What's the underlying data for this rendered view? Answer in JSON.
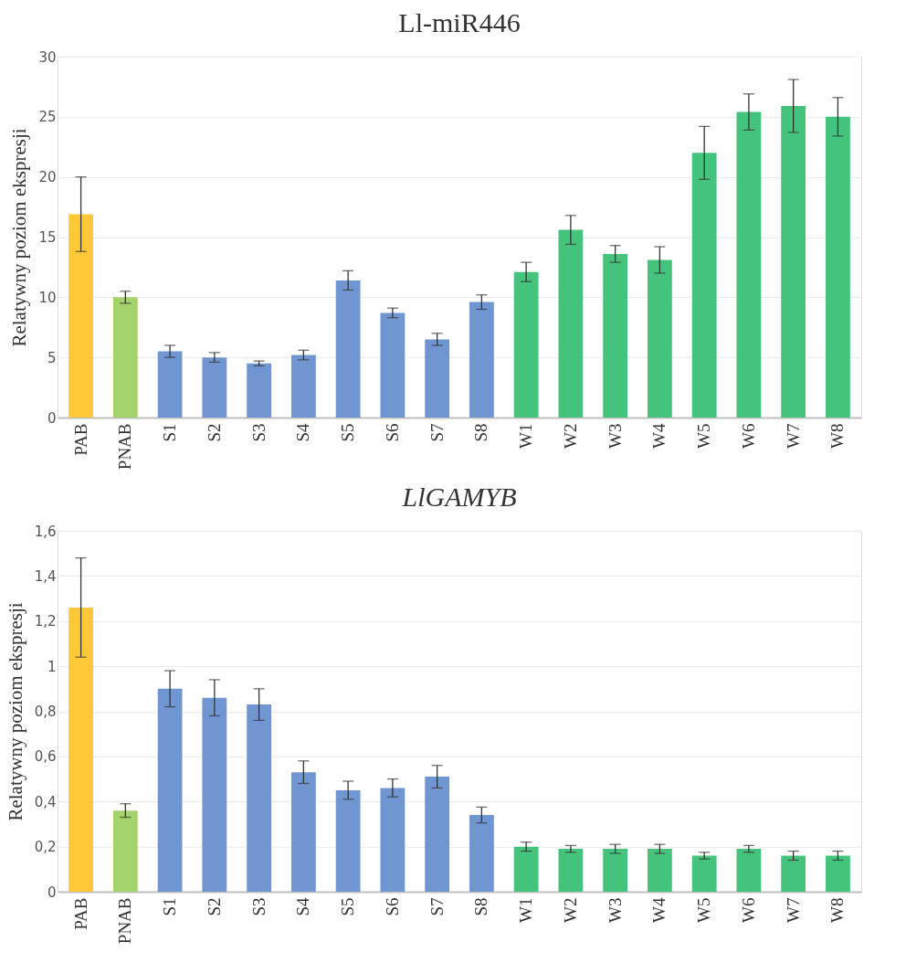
{
  "chart_data": [
    {
      "type": "bar",
      "title": "Ll-miR446",
      "ylabel": "Relatywny poziom ekspresji",
      "categories": [
        "PAB",
        "PNAB",
        "S1",
        "S2",
        "S3",
        "S4",
        "S5",
        "S6",
        "S7",
        "S8",
        "W1",
        "W2",
        "W3",
        "W4",
        "W5",
        "W6",
        "W7",
        "W8"
      ],
      "values": [
        16.9,
        10.0,
        5.5,
        5.0,
        4.5,
        5.2,
        11.4,
        8.7,
        6.5,
        9.6,
        12.1,
        15.6,
        13.6,
        13.1,
        22.0,
        25.4,
        25.9,
        25.0
      ],
      "errors": [
        3.1,
        0.5,
        0.5,
        0.4,
        0.2,
        0.4,
        0.8,
        0.4,
        0.5,
        0.6,
        0.8,
        1.2,
        0.7,
        1.1,
        2.2,
        1.5,
        2.2,
        1.6
      ],
      "colors": [
        "#ffc936",
        "#a4d36c",
        "#7096d1",
        "#7096d1",
        "#7096d1",
        "#7096d1",
        "#7096d1",
        "#7096d1",
        "#7096d1",
        "#7096d1",
        "#44c37c",
        "#44c37c",
        "#44c37c",
        "#44c37c",
        "#44c37c",
        "#44c37c",
        "#44c37c",
        "#44c37c"
      ],
      "ylim": [
        0,
        30
      ],
      "yticks": [
        0,
        5,
        10,
        15,
        20,
        25,
        30
      ],
      "grid": "y"
    },
    {
      "type": "bar",
      "title": "LlGAMYB",
      "ylabel": "Relatywny poziom ekspresji",
      "categories": [
        "PAB",
        "PNAB",
        "S1",
        "S2",
        "S3",
        "S4",
        "S5",
        "S6",
        "S7",
        "S8",
        "W1",
        "W2",
        "W3",
        "W4",
        "W5",
        "W6",
        "W7",
        "W8"
      ],
      "values": [
        1.26,
        0.36,
        0.9,
        0.86,
        0.83,
        0.53,
        0.45,
        0.46,
        0.51,
        0.34,
        0.2,
        0.19,
        0.19,
        0.19,
        0.16,
        0.19,
        0.16,
        0.16
      ],
      "errors": [
        0.22,
        0.03,
        0.08,
        0.08,
        0.07,
        0.05,
        0.04,
        0.04,
        0.05,
        0.035,
        0.02,
        0.015,
        0.02,
        0.02,
        0.015,
        0.015,
        0.02,
        0.02
      ],
      "colors": [
        "#ffc936",
        "#a4d36c",
        "#7096d1",
        "#7096d1",
        "#7096d1",
        "#7096d1",
        "#7096d1",
        "#7096d1",
        "#7096d1",
        "#7096d1",
        "#44c37c",
        "#44c37c",
        "#44c37c",
        "#44c37c",
        "#44c37c",
        "#44c37c",
        "#44c37c",
        "#44c37c"
      ],
      "ylim": [
        0,
        1.6
      ],
      "yticks": [
        0,
        {
          "value": 0.2,
          "label": "0,2"
        },
        {
          "value": 0.4,
          "label": "0,4"
        },
        {
          "value": 0.6,
          "label": "0,6"
        },
        {
          "value": 0.8,
          "label": "0,8"
        },
        1,
        {
          "value": 1.2,
          "label": "1,2"
        },
        {
          "value": 1.4,
          "label": "1,4"
        },
        {
          "value": 1.6,
          "label": "1,6"
        }
      ],
      "grid": "y"
    }
  ]
}
